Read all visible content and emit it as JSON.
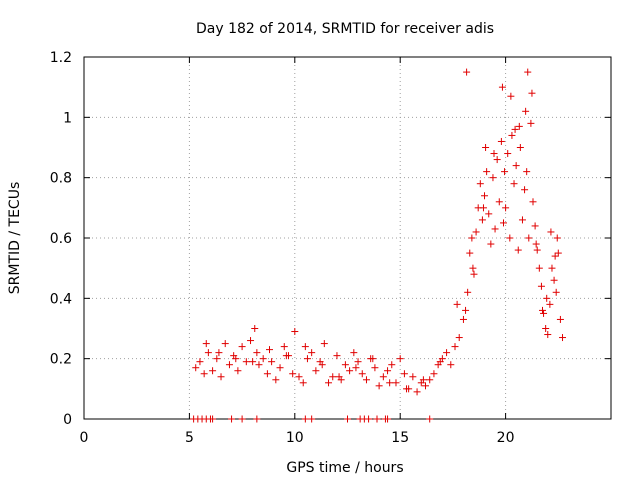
{
  "chart_data": {
    "type": "scatter",
    "title": "Day 182 of 2014, SRMTID for receiver adis",
    "xlabel": "GPS time / hours",
    "ylabel": "SRMTID / TECUs",
    "xlim": [
      0,
      25
    ],
    "ylim": [
      0,
      1.2
    ],
    "xticks": [
      0,
      5,
      10,
      15,
      20
    ],
    "xtick_labels": [
      "0",
      "5",
      "10",
      "15",
      "20"
    ],
    "yticks": [
      0,
      0.2,
      0.4,
      0.6,
      0.8,
      1,
      1.2
    ],
    "ytick_labels": [
      "0",
      "0.2",
      "0.4",
      "0.6",
      "0.8",
      "1",
      "1.2"
    ],
    "grid": true,
    "marker": "+",
    "color": "#e00000",
    "series": [
      {
        "name": "SRMTID",
        "x": [
          5.3,
          5.5,
          5.7,
          5.9,
          6.1,
          6.3,
          6.5,
          6.7,
          6.9,
          7.1,
          7.3,
          7.5,
          7.7,
          7.9,
          8.1,
          8.2,
          8.3,
          8.5,
          8.7,
          8.9,
          9.1,
          9.3,
          9.5,
          9.7,
          9.9,
          10.0,
          10.2,
          10.4,
          10.6,
          10.8,
          11.0,
          11.2,
          11.4,
          11.6,
          11.8,
          12.0,
          12.2,
          12.4,
          12.6,
          12.8,
          13.0,
          13.2,
          13.4,
          13.6,
          13.8,
          14.0,
          14.2,
          14.4,
          14.6,
          14.8,
          15.0,
          15.2,
          15.4,
          15.6,
          15.8,
          16.0,
          16.2,
          16.4,
          16.6,
          16.8,
          17.0,
          17.2,
          17.4,
          17.6,
          17.8,
          18.0,
          18.1,
          18.2,
          18.3,
          18.4,
          18.5,
          18.6,
          18.7,
          18.8,
          18.9,
          19.0,
          19.1,
          19.2,
          19.3,
          19.4,
          19.5,
          19.6,
          19.7,
          19.8,
          19.9,
          20.0,
          20.1,
          20.2,
          20.3,
          20.4,
          20.5,
          20.6,
          20.7,
          20.8,
          20.9,
          21.0,
          21.1,
          21.2,
          21.3,
          21.4,
          21.5,
          21.6,
          21.7,
          21.8,
          21.9,
          22.0,
          22.1,
          22.2,
          22.3,
          22.4,
          22.5,
          22.6,
          22.7,
          5.8,
          6.4,
          7.2,
          8.0,
          8.8,
          9.6,
          10.5,
          11.3,
          12.1,
          12.9,
          13.7,
          14.5,
          15.3,
          16.1,
          16.9,
          17.7,
          18.45,
          18.95,
          19.45,
          19.95,
          20.45,
          20.95,
          21.45,
          21.95,
          22.45,
          18.15,
          19.05,
          20.25,
          21.05,
          21.25,
          19.85,
          20.65,
          22.15,
          22.35,
          21.75,
          5.2,
          5.4,
          5.6,
          5.8,
          6.0,
          6.1,
          7.0,
          7.5,
          8.2,
          10.5,
          10.8,
          12.5,
          13.1,
          13.3,
          13.5,
          13.9,
          14.3,
          14.4,
          16.4
        ],
        "y": [
          0.17,
          0.19,
          0.15,
          0.22,
          0.16,
          0.2,
          0.14,
          0.25,
          0.18,
          0.21,
          0.16,
          0.24,
          0.19,
          0.26,
          0.3,
          0.22,
          0.18,
          0.2,
          0.15,
          0.19,
          0.13,
          0.17,
          0.24,
          0.21,
          0.15,
          0.29,
          0.14,
          0.12,
          0.2,
          0.22,
          0.16,
          0.19,
          0.25,
          0.12,
          0.14,
          0.21,
          0.13,
          0.18,
          0.16,
          0.22,
          0.19,
          0.15,
          0.13,
          0.2,
          0.17,
          0.11,
          0.14,
          0.16,
          0.18,
          0.12,
          0.2,
          0.15,
          0.1,
          0.14,
          0.09,
          0.12,
          0.11,
          0.13,
          0.15,
          0.18,
          0.2,
          0.22,
          0.18,
          0.24,
          0.27,
          0.33,
          0.36,
          0.42,
          0.55,
          0.6,
          0.48,
          0.62,
          0.7,
          0.78,
          0.66,
          0.74,
          0.82,
          0.68,
          0.58,
          0.8,
          0.63,
          0.86,
          0.72,
          0.92,
          0.65,
          0.7,
          0.88,
          0.6,
          0.94,
          0.78,
          0.84,
          0.56,
          0.9,
          0.66,
          0.76,
          0.82,
          0.6,
          0.98,
          0.72,
          0.64,
          0.56,
          0.5,
          0.44,
          0.35,
          0.3,
          0.28,
          0.38,
          0.5,
          0.46,
          0.42,
          0.55,
          0.33,
          0.27,
          0.25,
          0.22,
          0.2,
          0.19,
          0.23,
          0.21,
          0.24,
          0.18,
          0.14,
          0.17,
          0.2,
          0.12,
          0.1,
          0.13,
          0.19,
          0.38,
          0.5,
          0.7,
          0.88,
          0.82,
          0.96,
          1.02,
          0.58,
          0.4,
          0.6,
          1.15,
          0.9,
          1.07,
          1.15,
          1.08,
          1.1,
          0.97,
          0.62,
          0.54,
          0.36,
          0.0,
          0.0,
          0.0,
          0.0,
          0.0,
          0.0,
          0.0,
          0.0,
          0.0,
          0.0,
          0.0,
          0.0,
          0.0,
          0.0,
          0.0,
          0.0,
          0.0,
          0.0,
          0.0
        ]
      }
    ]
  }
}
